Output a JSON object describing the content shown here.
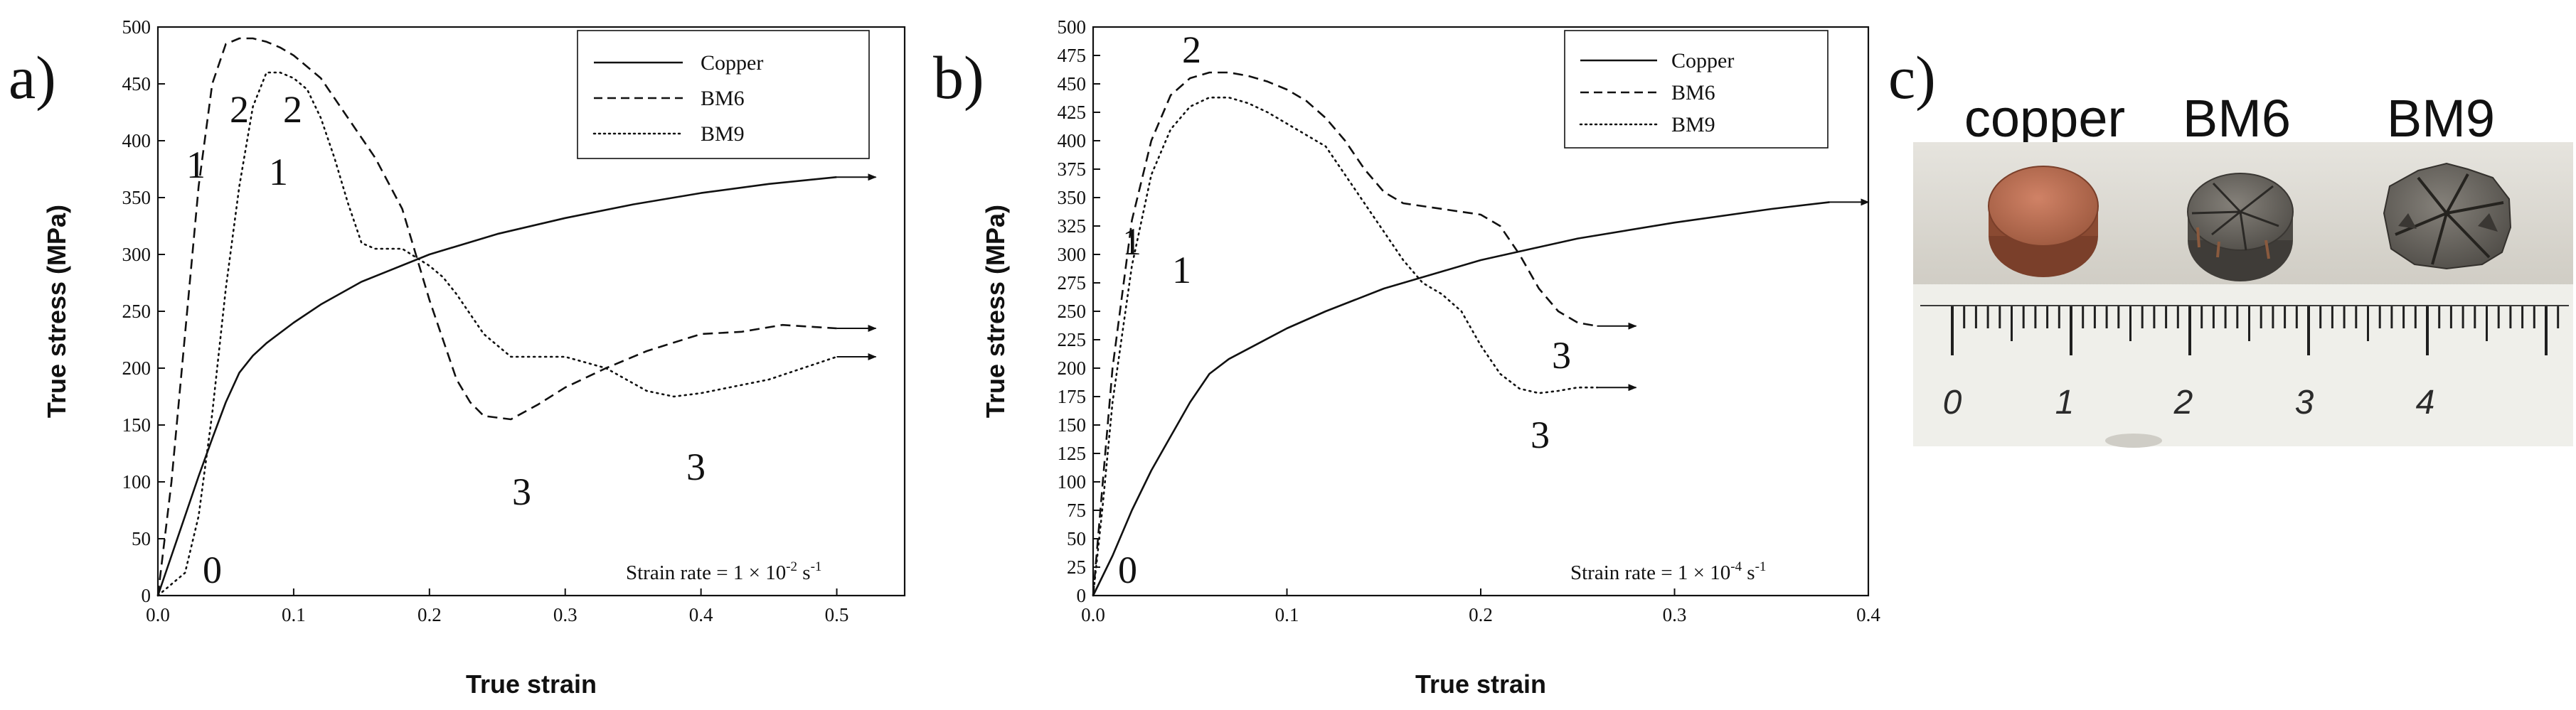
{
  "chart_data": [
    {
      "panel": "a)",
      "type": "line",
      "xlabel": "True strain",
      "ylabel": "True stress (MPa)",
      "xlim": [
        0,
        0.55
      ],
      "ylim": [
        0,
        500
      ],
      "x_ticks": [
        0.0,
        0.1,
        0.2,
        0.3,
        0.4,
        0.5
      ],
      "x_tick_labels": [
        "0.0",
        "0.1",
        "0.2",
        "0.3",
        "0.4",
        "0.5"
      ],
      "y_ticks": [
        0,
        50,
        100,
        150,
        200,
        250,
        300,
        350,
        400,
        450,
        500
      ],
      "y_tick_labels": [
        "0",
        "50",
        "100",
        "150",
        "200",
        "250",
        "300",
        "350",
        "400",
        "450",
        "500"
      ],
      "legend_position": "top-right",
      "annotation": {
        "base": "Strain rate = 1 × 10",
        "exp": "-2",
        "unit": " s",
        "unit_exp": "-1"
      },
      "series": [
        {
          "name": "Copper",
          "style": "solid",
          "x": [
            0,
            0.01,
            0.02,
            0.03,
            0.04,
            0.05,
            0.06,
            0.07,
            0.08,
            0.1,
            0.12,
            0.15,
            0.2,
            0.25,
            0.3,
            0.35,
            0.4,
            0.45,
            0.5
          ],
          "y": [
            0,
            35,
            70,
            105,
            138,
            170,
            196,
            211,
            222,
            240,
            256,
            276,
            300,
            318,
            332,
            344,
            354,
            362,
            368
          ]
        },
        {
          "name": "BM6",
          "style": "dashed",
          "x": [
            0,
            0.01,
            0.02,
            0.03,
            0.04,
            0.05,
            0.06,
            0.07,
            0.08,
            0.09,
            0.1,
            0.12,
            0.14,
            0.16,
            0.18,
            0.19,
            0.2,
            0.21,
            0.22,
            0.23,
            0.24,
            0.26,
            0.28,
            0.3,
            0.33,
            0.36,
            0.4,
            0.43,
            0.46,
            0.5
          ],
          "y": [
            0,
            100,
            230,
            360,
            450,
            485,
            490,
            490,
            487,
            482,
            475,
            455,
            420,
            385,
            340,
            300,
            260,
            225,
            190,
            170,
            158,
            155,
            168,
            183,
            200,
            215,
            230,
            232,
            238,
            235
          ]
        },
        {
          "name": "BM9",
          "style": "dotted",
          "x": [
            0,
            0.02,
            0.03,
            0.04,
            0.05,
            0.06,
            0.07,
            0.08,
            0.09,
            0.1,
            0.11,
            0.12,
            0.13,
            0.14,
            0.15,
            0.16,
            0.18,
            0.2,
            0.21,
            0.22,
            0.24,
            0.26,
            0.3,
            0.33,
            0.36,
            0.38,
            0.4,
            0.45,
            0.5
          ],
          "y": [
            0,
            20,
            70,
            160,
            270,
            360,
            430,
            460,
            460,
            455,
            445,
            420,
            385,
            345,
            310,
            305,
            305,
            290,
            280,
            265,
            230,
            210,
            210,
            200,
            180,
            175,
            178,
            190,
            210
          ]
        }
      ],
      "point_labels": [
        "0",
        "1",
        "2",
        "2",
        "1",
        "3",
        "3"
      ],
      "arrows": [
        {
          "series": "Copper",
          "x": 0.5,
          "y": 368
        },
        {
          "series": "BM6",
          "x": 0.5,
          "y": 235
        },
        {
          "series": "BM9",
          "x": 0.5,
          "y": 210
        }
      ]
    },
    {
      "panel": "b)",
      "type": "line",
      "xlabel": "True strain",
      "ylabel": "True stress (MPa)",
      "xlim": [
        0,
        0.4
      ],
      "ylim": [
        0,
        500
      ],
      "x_ticks": [
        0.0,
        0.1,
        0.2,
        0.3,
        0.4
      ],
      "x_tick_labels": [
        "0.0",
        "0.1",
        "0.2",
        "0.3",
        "0.4"
      ],
      "y_ticks": [
        0,
        25,
        50,
        75,
        100,
        125,
        150,
        175,
        200,
        225,
        250,
        275,
        300,
        325,
        350,
        375,
        400,
        425,
        450,
        475,
        500
      ],
      "y_tick_labels": [
        "0",
        "25",
        "50",
        "75",
        "100",
        "125",
        "150",
        "175",
        "200",
        "225",
        "250",
        "275",
        "300",
        "325",
        "350",
        "375",
        "400",
        "425",
        "450",
        "475",
        "500"
      ],
      "legend_position": "top-right",
      "annotation": {
        "base": "Strain rate = 1 × 10",
        "exp": "-4",
        "unit": " s",
        "unit_exp": "-1"
      },
      "series": [
        {
          "name": "Copper",
          "style": "solid",
          "x": [
            0,
            0.01,
            0.02,
            0.03,
            0.04,
            0.05,
            0.06,
            0.07,
            0.08,
            0.1,
            0.12,
            0.15,
            0.2,
            0.25,
            0.3,
            0.35,
            0.38
          ],
          "y": [
            0,
            35,
            75,
            110,
            140,
            170,
            195,
            208,
            217,
            235,
            250,
            270,
            295,
            314,
            328,
            340,
            346
          ]
        },
        {
          "name": "BM6",
          "style": "dashed",
          "x": [
            0,
            0.005,
            0.01,
            0.02,
            0.03,
            0.04,
            0.05,
            0.06,
            0.07,
            0.08,
            0.09,
            0.1,
            0.11,
            0.12,
            0.13,
            0.14,
            0.15,
            0.16,
            0.18,
            0.2,
            0.21,
            0.22,
            0.23,
            0.24,
            0.25,
            0.26
          ],
          "y": [
            0,
            100,
            200,
            330,
            400,
            440,
            455,
            460,
            460,
            457,
            452,
            445,
            435,
            420,
            400,
            375,
            355,
            345,
            340,
            335,
            325,
            300,
            270,
            250,
            240,
            237
          ]
        },
        {
          "name": "BM9",
          "style": "dotted",
          "x": [
            0,
            0.005,
            0.01,
            0.02,
            0.03,
            0.04,
            0.05,
            0.06,
            0.07,
            0.08,
            0.09,
            0.1,
            0.11,
            0.12,
            0.13,
            0.14,
            0.15,
            0.16,
            0.17,
            0.18,
            0.19,
            0.2,
            0.21,
            0.22,
            0.23,
            0.24,
            0.25,
            0.26
          ],
          "y": [
            0,
            80,
            170,
            290,
            370,
            410,
            430,
            438,
            438,
            433,
            425,
            415,
            405,
            395,
            370,
            345,
            320,
            295,
            275,
            265,
            250,
            220,
            195,
            182,
            178,
            180,
            183,
            183
          ]
        }
      ],
      "point_labels": [
        "0",
        "1",
        "2",
        "1",
        "3",
        "3"
      ],
      "arrows": [
        {
          "series": "Copper",
          "x": 0.38,
          "y": 346
        },
        {
          "series": "BM6",
          "x": 0.26,
          "y": 237
        },
        {
          "series": "BM9",
          "x": 0.26,
          "y": 183
        }
      ]
    }
  ],
  "panel_c": {
    "letter": "c)",
    "sample_labels": [
      "copper",
      "BM6",
      "BM9"
    ],
    "ruler_numbers": [
      "0",
      "1",
      "2",
      "3",
      "4"
    ],
    "colors": {
      "copper": "#b06a4e",
      "bm_sample": "#6e6a64",
      "background": "#d9d6cf",
      "ruler": "#eeeeea"
    }
  }
}
